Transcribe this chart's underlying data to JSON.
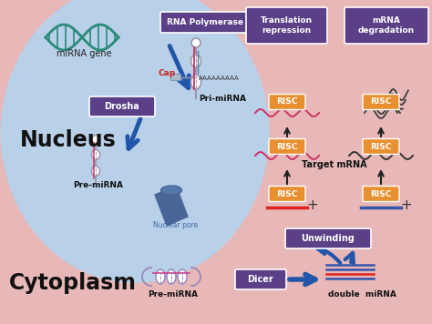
{
  "bg_nucleus_color": "#b8d0e8",
  "bg_cytoplasm_color": "#e8b8b8",
  "fig_width": 4.74,
  "fig_height": 3.56,
  "labels": {
    "mirna_gene": "miRNA gene",
    "nucleus": "Nucleus",
    "cytoplasm": "Cytoplasm",
    "rna_polymerase": "RNA Polymerase",
    "drosha": "Drosha",
    "pri_mirna": "Pri-miRNA",
    "pre_mirna_nucleus": "Pre-miRNA",
    "pre_mirna_cytoplasm": "Pre-miRNA",
    "nuclear_pore": "Nuclear pore",
    "cap": "Cap",
    "poly_a": "AAAAAAAAA",
    "dicer": "Dicer",
    "unwinding": "Unwinding",
    "double_mirna": "double  miRNA",
    "risc": "RISC",
    "target_mrna": "Target mRNA",
    "translation_repression": "Translation\nrepression",
    "mrna_degradation": "mRNA\ndegradation",
    "plus": "+"
  },
  "colors": {
    "box_purple": "#5b4088",
    "box_orange": "#e89030",
    "arrow_blue": "#2255aa",
    "dna_teal": "#2a8a7a",
    "rna_pink": "#cc3366",
    "rna_dark": "#333333",
    "rna_blue_line": "#4466bb",
    "line_red": "#dd2222",
    "line_blue": "#3355aa",
    "white": "#ffffff",
    "black": "#000000",
    "nucleus_label": "#111111",
    "cytoplasm_label": "#111111",
    "cap_red": "#cc2222",
    "nuclear_pore_blue": "#4466aa",
    "gray_stem": "#9999aa",
    "pre_mirna_border": "#9988bb"
  }
}
